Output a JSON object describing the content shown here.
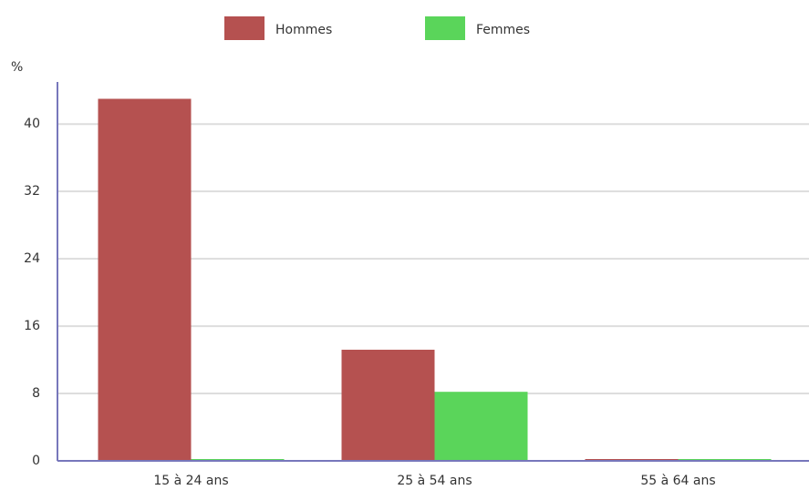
{
  "chart_data": {
    "type": "bar",
    "y_label": "%",
    "categories": [
      "15 à 24 ans",
      "25 à 54 ans",
      "55 à 64 ans"
    ],
    "series": [
      {
        "name": "Hommes",
        "color": "#b55150",
        "values": [
          43,
          13.2,
          0
        ]
      },
      {
        "name": "Femmes",
        "color": "#5ad55a",
        "values": [
          0,
          8.2,
          0
        ]
      }
    ],
    "ylim": [
      0,
      45
    ],
    "yticks": [
      0,
      8,
      16,
      24,
      32,
      40
    ],
    "grid": true
  }
}
